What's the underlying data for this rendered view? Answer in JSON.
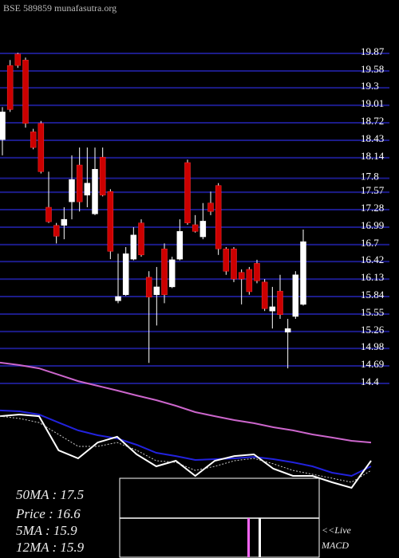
{
  "chart_data": [
    {
      "type": "candlestick",
      "title": "BSE 589859 munafasutra.org",
      "ylim": [
        14.4,
        19.87
      ],
      "yticks": [
        19.87,
        19.58,
        19.3,
        19.01,
        18.72,
        18.43,
        18.14,
        17.8,
        17.57,
        17.28,
        16.99,
        16.7,
        16.42,
        16.13,
        15.84,
        15.55,
        15.26,
        14.98,
        14.69,
        14.4
      ],
      "grid": true,
      "colors": {
        "up": "#ffffff",
        "down": "#cc0000",
        "grid": "#1c1c8a"
      },
      "open": [
        18.44,
        19.67,
        19.86,
        19.76,
        18.57,
        18.71,
        17.32,
        17.02,
        17.02,
        17.41,
        18.02,
        17.52,
        17.21,
        18.15,
        17.58,
        15.77,
        15.87,
        16.46,
        17.06,
        16.16,
        15.87,
        16.63,
        16.0,
        16.46,
        18.06,
        17.03,
        16.83,
        17.39,
        17.68,
        16.63,
        16.63,
        16.24,
        16.29,
        16.39,
        16.08,
        15.6,
        15.93,
        15.25,
        15.51,
        15.71
      ],
      "high": [
        18.98,
        19.76,
        19.88,
        19.8,
        18.62,
        18.75,
        17.91,
        17.06,
        17.32,
        18.18,
        18.31,
        18.31,
        18.31,
        18.31,
        17.62,
        16.55,
        16.66,
        16.99,
        17.12,
        16.26,
        16.33,
        16.72,
        16.5,
        17.12,
        18.11,
        17.19,
        17.39,
        17.58,
        17.72,
        16.66,
        16.66,
        16.29,
        16.33,
        16.45,
        16.13,
        16.0,
        16.2,
        15.47,
        16.26,
        16.95
      ],
      "low": [
        18.18,
        18.9,
        19.63,
        18.64,
        18.28,
        17.88,
        17.06,
        16.72,
        16.79,
        17.12,
        17.25,
        17.32,
        17.19,
        17.5,
        16.46,
        15.73,
        15.85,
        16.44,
        16.5,
        14.74,
        15.36,
        15.73,
        15.98,
        16.44,
        17.03,
        16.9,
        16.79,
        17.19,
        16.53,
        16.2,
        16.08,
        15.71,
        15.87,
        16.06,
        15.6,
        15.31,
        15.47,
        14.65,
        15.47,
        15.69
      ],
      "close": [
        18.9,
        18.94,
        19.67,
        18.71,
        18.31,
        17.91,
        17.08,
        16.84,
        17.12,
        17.78,
        17.41,
        17.72,
        17.95,
        17.52,
        16.59,
        15.84,
        16.55,
        16.86,
        16.53,
        15.83,
        16.0,
        15.87,
        16.45,
        16.92,
        17.06,
        16.92,
        17.09,
        17.25,
        16.63,
        16.26,
        16.13,
        16.13,
        15.92,
        16.1,
        15.64,
        15.67,
        15.54,
        15.31,
        16.2,
        16.75
      ]
    },
    {
      "type": "line",
      "ylim": [
        0,
        100
      ],
      "series": [
        {
          "color": "#cc66cc",
          "values": [
            97.1,
            95.3,
            92.9,
            88.2,
            83.5,
            80,
            76.5,
            72.9,
            69.4,
            65.3,
            60.6,
            57.6,
            54.7,
            52.4,
            49.4,
            47.1,
            44.1,
            41.8,
            39.4,
            38.2
          ]
        },
        {
          "color": "#2222dd",
          "values": [
            61.8,
            61.2,
            58.8,
            52.9,
            47.1,
            43.5,
            41.2,
            36.5,
            30.6,
            28.2,
            25.3,
            25.9,
            26.5,
            27.6,
            25.9,
            23.5,
            20.6,
            15.9,
            13.5,
            20.6
          ]
        },
        {
          "color": "#ffffff",
          "values": [
            57.6,
            58.8,
            57.6,
            32.4,
            26.5,
            38.2,
            42.4,
            29.4,
            20.6,
            24.7,
            13.5,
            24.7,
            28.2,
            29.4,
            18.8,
            13.5,
            13.5,
            8.8,
            4.7,
            24.7
          ]
        },
        {
          "color": "#cccccc",
          "dashed": true,
          "values": [
            57.6,
            55.9,
            52.9,
            44.1,
            35.3,
            35.3,
            38.2,
            32.4,
            24.7,
            23.5,
            17.6,
            20.6,
            24.7,
            26.5,
            22.4,
            17.6,
            14.7,
            11.8,
            8.8,
            17.6
          ]
        }
      ]
    }
  ],
  "readouts": [
    "50MA  : 17.5",
    "Price  : 16.6",
    "5MA  : 15.9",
    "12MA  : 15.9"
  ],
  "macd_label": [
    "<<Live",
    "MACD"
  ]
}
